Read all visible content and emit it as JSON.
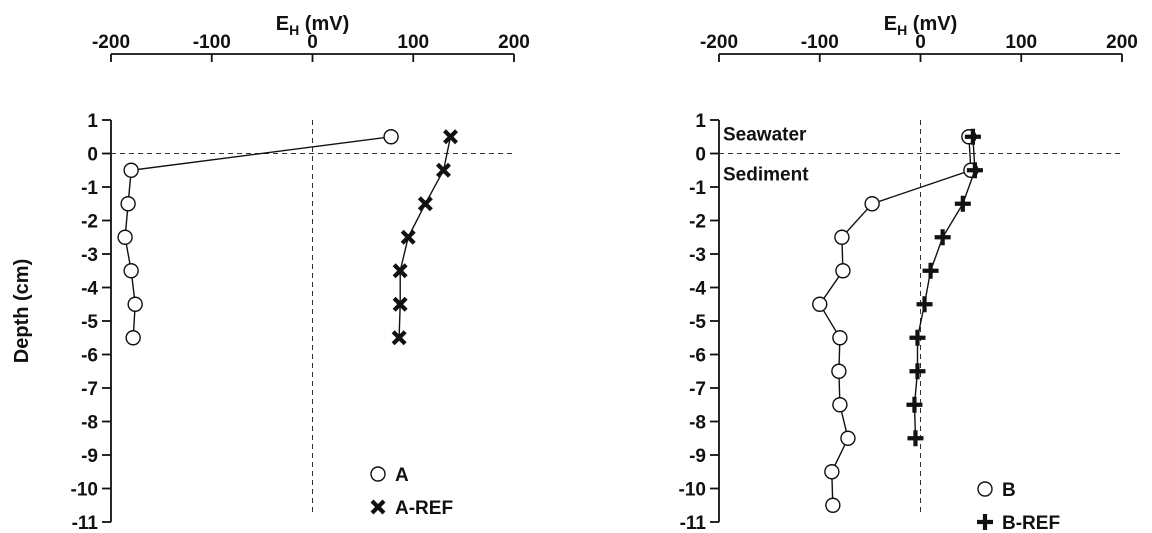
{
  "chart_data": [
    {
      "type": "line",
      "title": "",
      "xlabel": "E",
      "xlabel_sub": "H",
      "xlabel_unit": " (mV)",
      "ylabel": "Depth (cm)",
      "xlim": [
        -200,
        200
      ],
      "ylim": [
        -11,
        1
      ],
      "xticks": [
        "-200",
        "-100",
        "0",
        "100",
        "200"
      ],
      "yticks": [
        "1",
        "0",
        "-1",
        "-2",
        "-3",
        "-4",
        "-5",
        "-6",
        "-7",
        "-8",
        "-9",
        "-10",
        "-11"
      ],
      "x_axis_position": "top",
      "grid": false,
      "reference_lines": {
        "x": 0,
        "y": 0,
        "style": "dashed"
      },
      "legend_position": "bottom-right",
      "annotations": [],
      "series": [
        {
          "name": "A",
          "marker": "open-circle",
          "color": "#111111",
          "points": [
            [
              78,
              0.5
            ],
            [
              -180,
              -0.5
            ],
            [
              -183,
              -1.5
            ],
            [
              -186,
              -2.5
            ],
            [
              -180,
              -3.5
            ],
            [
              -176,
              -4.5
            ],
            [
              -178,
              -5.5
            ]
          ]
        },
        {
          "name": "A-REF",
          "marker": "x",
          "color": "#111111",
          "points": [
            [
              137,
              0.5
            ],
            [
              130,
              -0.5
            ],
            [
              112,
              -1.5
            ],
            [
              95,
              -2.5
            ],
            [
              87,
              -3.5
            ],
            [
              87,
              -4.5
            ],
            [
              86,
              -5.5
            ]
          ]
        }
      ]
    },
    {
      "type": "line",
      "title": "",
      "xlabel": "E",
      "xlabel_sub": "H",
      "xlabel_unit": " (mV)",
      "ylabel": "",
      "xlim": [
        -200,
        200
      ],
      "ylim": [
        -11,
        1
      ],
      "xticks": [
        "-200",
        "-100",
        "0",
        "100",
        "200"
      ],
      "yticks": [
        "1",
        "0",
        "-1",
        "-2",
        "-3",
        "-4",
        "-5",
        "-6",
        "-7",
        "-8",
        "-9",
        "-10",
        "-11"
      ],
      "x_axis_position": "top",
      "grid": false,
      "reference_lines": {
        "x": 0,
        "y": 0,
        "style": "dashed"
      },
      "legend_position": "bottom-right",
      "annotations": [
        {
          "text": "Seawater",
          "x": -200,
          "y": 0.6
        },
        {
          "text": "Sediment",
          "x": -200,
          "y": -0.6
        }
      ],
      "series": [
        {
          "name": "B",
          "marker": "open-circle",
          "color": "#111111",
          "points": [
            [
              48,
              0.5
            ],
            [
              50,
              -0.5
            ],
            [
              -48,
              -1.5
            ],
            [
              -78,
              -2.5
            ],
            [
              -77,
              -3.5
            ],
            [
              -100,
              -4.5
            ],
            [
              -80,
              -5.5
            ],
            [
              -81,
              -6.5
            ],
            [
              -80,
              -7.5
            ],
            [
              -72,
              -8.5
            ],
            [
              -88,
              -9.5
            ],
            [
              -87,
              -10.5
            ]
          ]
        },
        {
          "name": "B-REF",
          "marker": "plus",
          "color": "#111111",
          "points": [
            [
              52,
              0.5
            ],
            [
              54,
              -0.5
            ],
            [
              42,
              -1.5
            ],
            [
              22,
              -2.5
            ],
            [
              10,
              -3.5
            ],
            [
              4,
              -4.5
            ],
            [
              -3,
              -5.5
            ],
            [
              -3,
              -6.5
            ],
            [
              -6,
              -7.5
            ],
            [
              -5,
              -8.5
            ]
          ]
        }
      ]
    }
  ]
}
